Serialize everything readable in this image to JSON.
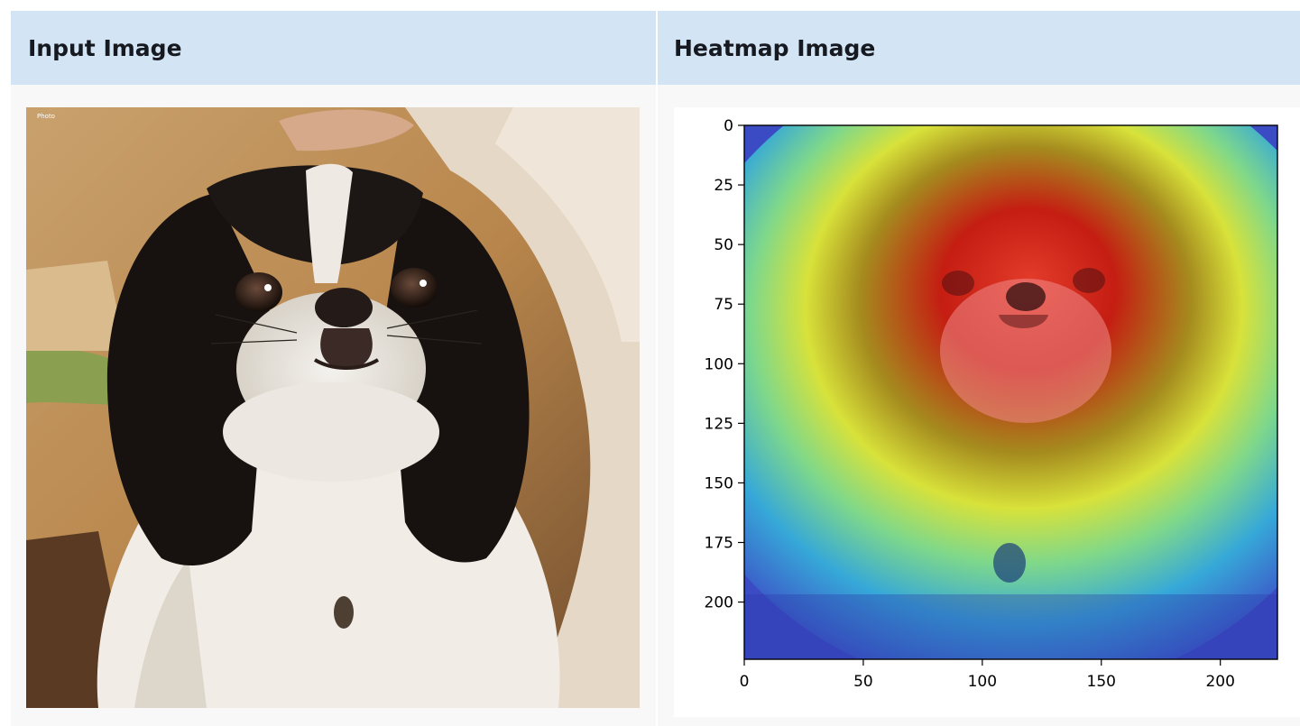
{
  "columns": {
    "input_title": "Input Image",
    "heatmap_title": "Heatmap Image"
  },
  "input_image": {
    "watermark_text": "Photo",
    "subject": "japanese-chin-dog-photo"
  },
  "heatmap": {
    "x_ticks": [
      "0",
      "50",
      "100",
      "150",
      "200"
    ],
    "y_ticks": [
      "0",
      "25",
      "50",
      "75",
      "100",
      "125",
      "150",
      "175",
      "200"
    ],
    "x_range": [
      0,
      224
    ],
    "y_range": [
      0,
      224
    ],
    "colormap": "jet",
    "hotspot_center": [
      110,
      70
    ]
  },
  "colors": {
    "header_bg": "#d3e4f5",
    "panel_bg": "#f8f8f8",
    "title_text": "#16191f"
  }
}
